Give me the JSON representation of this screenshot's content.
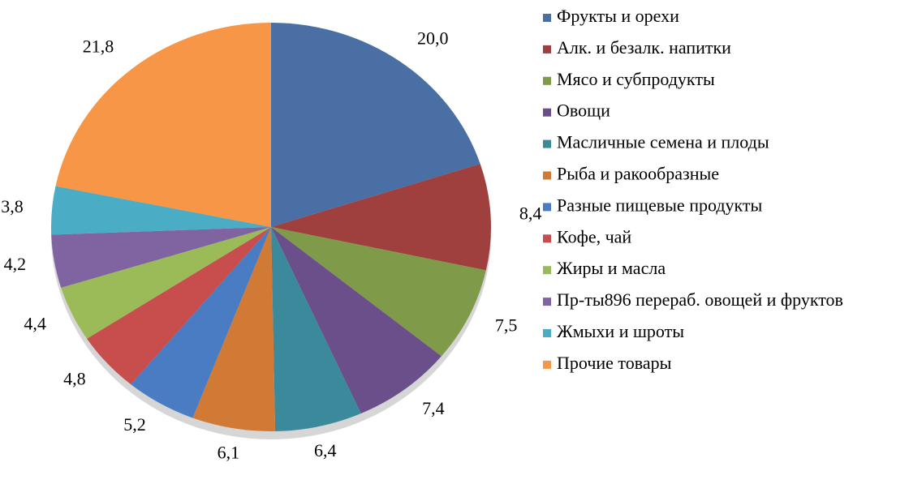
{
  "chart_data": {
    "type": "pie",
    "categories": [
      "Фрукты и орехи",
      "Алк. и безалк. напитки",
      "Мясо и субпродукты",
      "Овощи",
      "Масличные семена и плоды",
      "Рыба и ракообразные",
      "Разные пищевые продукты",
      "Кофе, чай",
      "Жиры и масла",
      "Пр-ты896 переpаб. овощей и фруктов",
      "Жмыхи и шроты",
      "Прочие товары"
    ],
    "values": [
      20.0,
      8.4,
      7.5,
      7.4,
      6.4,
      6.1,
      5.2,
      4.8,
      4.4,
      4.2,
      3.8,
      21.8
    ],
    "value_labels": [
      "20,0",
      "8,4",
      "7,5",
      "7,4",
      "6,4",
      "6,1",
      "5,2",
      "4,8",
      "4,4",
      "4,2",
      "3,8",
      "21,8"
    ],
    "colors": [
      "#4a6fa5",
      "#a0403e",
      "#7f9a48",
      "#6a4f8a",
      "#3a8a9c",
      "#d07a35",
      "#4a7cc4",
      "#c84e4e",
      "#9bbb59",
      "#8064a2",
      "#4bacc6",
      "#f79646"
    ],
    "legend": "right"
  }
}
